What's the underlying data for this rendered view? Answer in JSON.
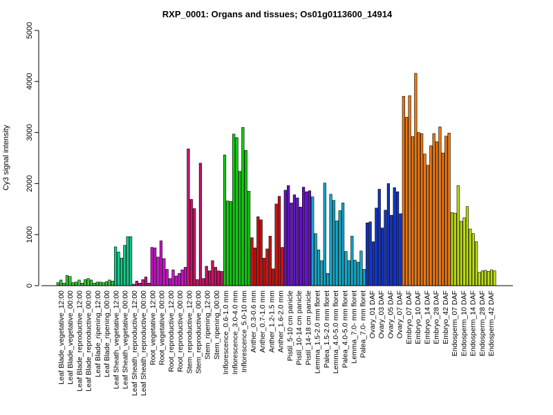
{
  "chart_data": {
    "type": "bar",
    "title": "RXP_0001: Organs and tissues; Os01g0113600_14914",
    "xlabel": "",
    "ylabel": "Cy3 signal intensity",
    "ylim": [
      0,
      5000
    ],
    "yticks": [
      0,
      1000,
      2000,
      3000,
      4000,
      5000
    ],
    "grid": false,
    "legend": "none",
    "x_tick_labels": [
      "Leaf Blade_vegetative_12:00",
      "Leaf Blade_vegetative_00:00",
      "Leaf Blade_reproductive_12:00",
      "Leaf Blade_reproductive_00:00",
      "Leaf Blade_ripening_12:00",
      "Leaf Blade_ripening_00:00",
      "Leaf Sheath_vegetative_12:00",
      "Leaf Sheath_vegetative_00:00",
      "Leaf Sheath_reproductive_12:00",
      "Leaf Sheath_reproductive_00:00",
      "Root_vegetative_12:00",
      "Root_vegetative_00:00",
      "Root_reproductive_12:00",
      "Root_reproductive_00:00",
      "Stem_reproductive_12:00",
      "Stem_reproductive_00:00",
      "Stem_ripening_12:00",
      "Stem_ripening_00:00",
      "Inflorescence_0.6-1.0 mm",
      "Inflorescence_3.0-4.0 mm",
      "Inflorescence_5.0-10 mm",
      "Anther_0.3-0.6 mm",
      "Anther_0.7-1.0 mm",
      "Anther_1.2-1.5 mm",
      "Anther_1.6-2.0 mm",
      "Pistil_5-10 cm panicle",
      "Pistil_10-14 cm panicle",
      "Pistil_14-18 cm panicle",
      "Lemma_1.5-2.0 mm floret",
      "Palea_1.5-2.0 mm floret",
      "Lemma_4.0-5.0 mm floret",
      "Palea_4.0-5.0 mm floret",
      "Lemma_7.0- mm floret",
      "Palea_7.0- mm floret",
      "Ovary_01 DAF",
      "Ovary_03 DAF",
      "Ovary_05 DAF",
      "Ovary_07 DAF",
      "Embryo_07 DAF",
      "Embryo_10 DAF",
      "Embryo_14 DAF",
      "Embryo_28 DAF",
      "Embryo_42 DAF",
      "Endosperm_07 DAF",
      "Endosperm_10 DAF",
      "Endosperm_14 DAF",
      "Endosperm_28 DAF",
      "Endosperm_42 DAF"
    ],
    "groups": [
      {
        "color": "#33cc33",
        "values": [
          60,
          110,
          50,
          200,
          180,
          60,
          70,
          110,
          50,
          120,
          140,
          110,
          50,
          70,
          70,
          60,
          80,
          110,
          90
        ]
      },
      {
        "color": "#11cc88",
        "values": [
          760,
          660,
          540,
          790,
          960,
          960
        ]
      },
      {
        "color": "#cc1188",
        "values": [
          30,
          90,
          50,
          120,
          170,
          50
        ]
      },
      {
        "color": "#cc11cc",
        "values": [
          750,
          740,
          560,
          880,
          530,
          320,
          140,
          310,
          190,
          240,
          310,
          360
        ]
      },
      {
        "color": "#cc1166",
        "values": [
          2680,
          1690,
          1510,
          120,
          2400,
          140,
          380,
          290,
          490,
          360,
          290,
          280
        ]
      },
      {
        "color": "#11cc11",
        "values": [
          2560,
          1660,
          1650,
          2970,
          2900,
          2240,
          3100,
          2650,
          1850
        ]
      },
      {
        "color": "#cc1111",
        "values": [
          940,
          740,
          1350,
          1290,
          540,
          720,
          970,
          330,
          1600,
          1750,
          750
        ]
      },
      {
        "color": "#6611cc",
        "values": [
          1870,
          1960,
          1620,
          1780,
          1720,
          1540,
          1930,
          1840,
          1860
        ]
      },
      {
        "color": "#11aacc",
        "values": [
          1740,
          1020,
          700,
          490,
          2010,
          240,
          1790,
          1670,
          1270,
          1470,
          1620,
          670,
          490,
          970,
          500,
          460,
          680,
          320
        ]
      },
      {
        "color": "#1133cc",
        "values": [
          1230,
          1250,
          860,
          1520,
          1890,
          1130,
          1480,
          2000,
          1380,
          1920,
          1840,
          1410
        ]
      },
      {
        "color": "#ee7711",
        "values": [
          3710,
          3300,
          3720,
          2920,
          4160,
          3000,
          2980,
          2580,
          2360,
          2740,
          2980,
          2820,
          3110,
          2600,
          2930,
          2990
        ]
      },
      {
        "color": "#bbdd11",
        "values": [
          1430,
          1420,
          1960,
          1260,
          1330,
          1550,
          1110,
          1020,
          860,
          260,
          290,
          300,
          280,
          310,
          290
        ]
      }
    ]
  }
}
